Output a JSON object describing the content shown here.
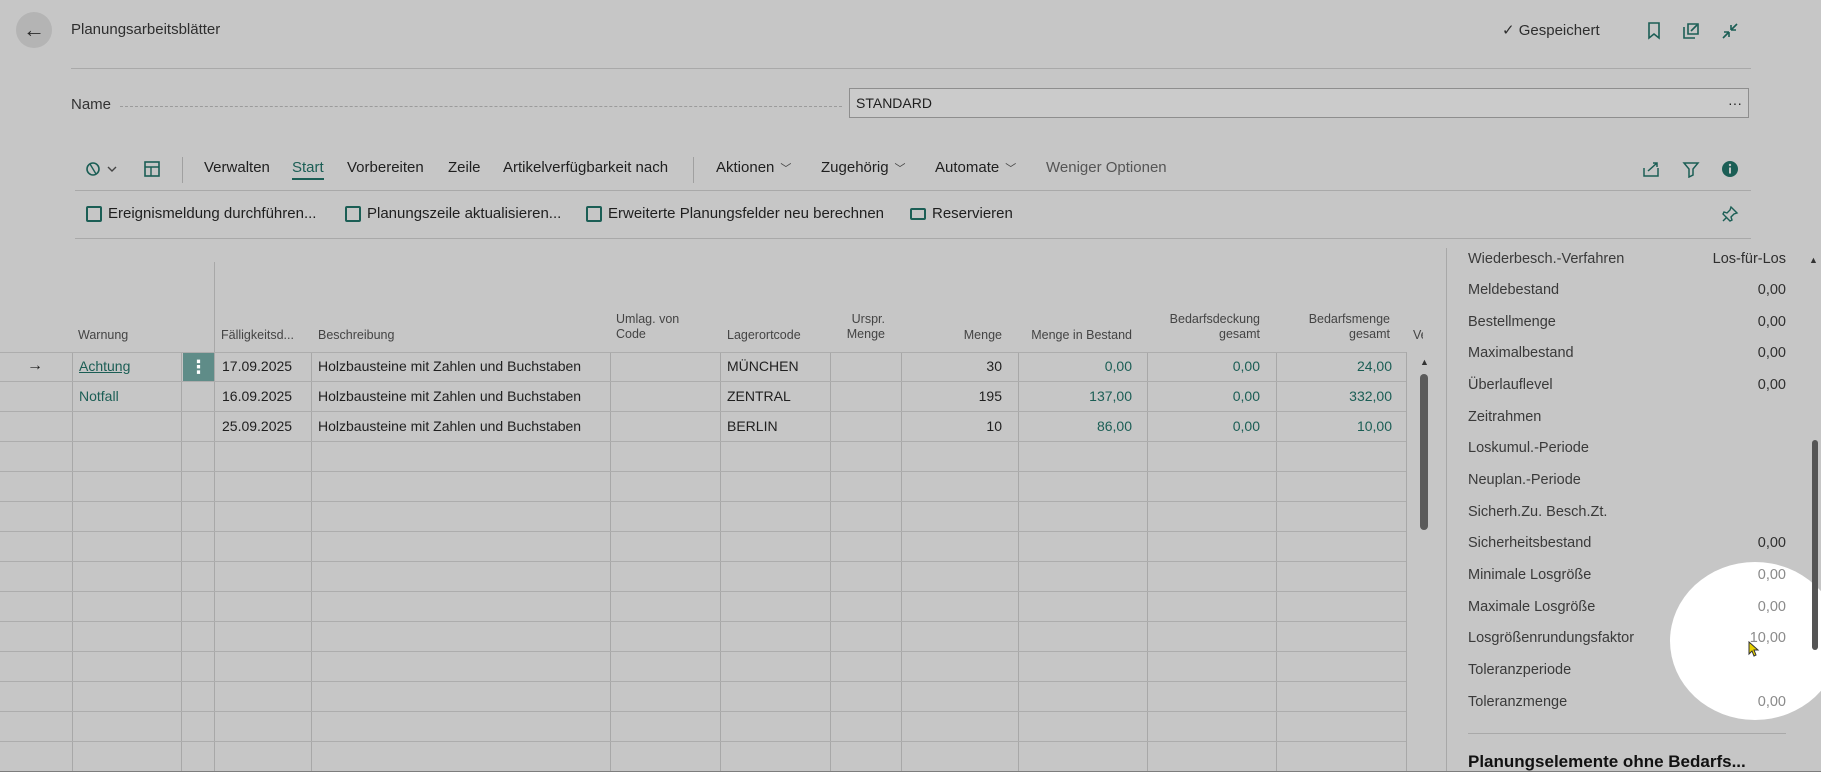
{
  "header": {
    "back_glyph": "←",
    "title": "Planungsarbeitsblätter",
    "saved": "✓ Gespeichert"
  },
  "name_field": {
    "label": "Name",
    "value": "STANDARD",
    "more": "···"
  },
  "menu": {
    "verwalten": "Verwalten",
    "start": "Start",
    "vorbereiten": "Vorbereiten",
    "zeile": "Zeile",
    "artikel": "Artikelverfügbarkeit nach",
    "aktionen": "Aktionen",
    "zugehoerig": "Zugehörig",
    "automate": "Automate",
    "weniger": "Weniger Optionen"
  },
  "actions": {
    "ereignis": "Ereignismeldung durchführen...",
    "planungszeile": "Planungszeile aktualisieren...",
    "erweiterte": "Erweiterte Planungsfelder neu berechnen",
    "reservieren": "Reservieren"
  },
  "table": {
    "headers": {
      "warnung": "Warnung",
      "faellig": "Fälligkeitsd...",
      "beschreibung": "Beschreibung",
      "umlag1": "Umlag. von",
      "umlag2": "Code",
      "lagerort": "Lagerortcode",
      "urspr1": "Urspr.",
      "urspr2": "Menge",
      "menge": "Menge",
      "bestand": "Menge in Bestand",
      "bedarfsdeckung1": "Bedarfsdeckung",
      "bedarfsdeckung2": "gesamt",
      "bedarfsmenge1": "Bedarfsmenge",
      "bedarfsmenge2": "gesamt",
      "ver": "Verl"
    },
    "rows": [
      {
        "marker": "→",
        "warnung": "Achtung",
        "faellig": "17.09.2025",
        "beschreibung": "Holzbausteine mit Zahlen und Buchstaben",
        "lagerort": "MÜNCHEN",
        "menge": "30",
        "bestand": "0,00",
        "deckung": "0,00",
        "bedarf": "24,00"
      },
      {
        "marker": "",
        "warnung": "Notfall",
        "faellig": "16.09.2025",
        "beschreibung": "Holzbausteine mit Zahlen und Buchstaben",
        "lagerort": "ZENTRAL",
        "menge": "195",
        "bestand": "137,00",
        "deckung": "0,00",
        "bedarf": "332,00"
      },
      {
        "marker": "",
        "warnung": "",
        "faellig": "25.09.2025",
        "beschreibung": "Holzbausteine mit Zahlen und Buchstaben",
        "lagerort": "BERLIN",
        "menge": "10",
        "bestand": "86,00",
        "deckung": "0,00",
        "bedarf": "10,00"
      }
    ]
  },
  "factbox": {
    "rows": [
      {
        "label": "Wiederbesch.-Verfahren",
        "value": "Los-für-Los"
      },
      {
        "label": "Meldebestand",
        "value": "0,00"
      },
      {
        "label": "Bestellmenge",
        "value": "0,00"
      },
      {
        "label": "Maximalbestand",
        "value": "0,00"
      },
      {
        "label": "Überlauflevel",
        "value": "0,00"
      },
      {
        "label": "Zeitrahmen",
        "value": ""
      },
      {
        "label": "Loskumul.-Periode",
        "value": ""
      },
      {
        "label": "Neuplan.-Periode",
        "value": ""
      },
      {
        "label": "Sicherh.Zu. Besch.Zt.",
        "value": ""
      },
      {
        "label": "Sicherheitsbestand",
        "value": "0,00"
      },
      {
        "label": "Minimale Losgröße",
        "value": "0,00"
      },
      {
        "label": "Maximale Losgröße",
        "value": "0,00"
      },
      {
        "label": "Losgrößenrundungsfaktor",
        "value": "10,00"
      },
      {
        "label": "Toleranzperiode",
        "value": ""
      },
      {
        "label": "Toleranzmenge",
        "value": "0,00"
      }
    ],
    "section_title": "Planungselemente ohne Bedarfs..."
  }
}
